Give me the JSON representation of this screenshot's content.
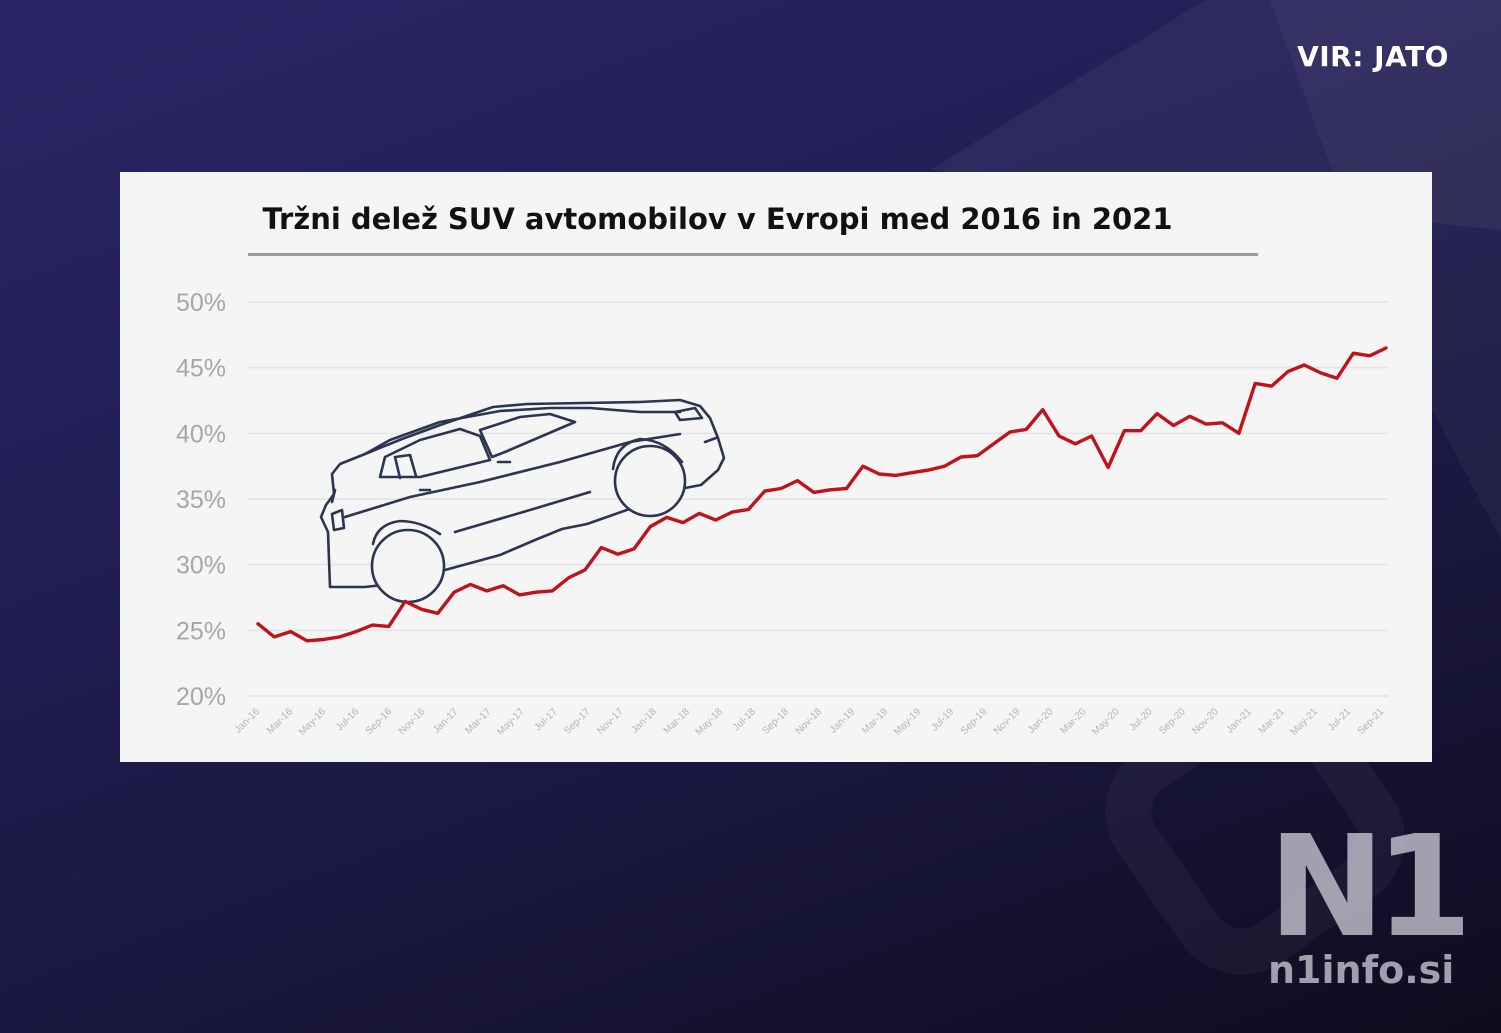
{
  "source": "VIR: JATO",
  "logo": {
    "mark": "N1",
    "url": "n1info.si"
  },
  "chart_data": {
    "type": "line",
    "title": "Tržni delež SUV avtomobilov v Evropi med 2016 in 2021",
    "xlabel": "",
    "ylabel": "",
    "ylim": [
      20,
      50
    ],
    "yticks": [
      20,
      25,
      30,
      35,
      40,
      45,
      50
    ],
    "ytick_labels": [
      "20%",
      "25%",
      "30%",
      "35%",
      "40%",
      "45%",
      "50%"
    ],
    "grid": true,
    "line_color": "#c0121a",
    "x_tick_labels": [
      "Jan-16",
      "Mar-16",
      "May-16",
      "Jul-16",
      "Sep-16",
      "Nov-16",
      "Jan-17",
      "Mar-17",
      "May-17",
      "Jul-17",
      "Sep-17",
      "Nov-17",
      "Jan-18",
      "Mar-18",
      "May-18",
      "Jul-18",
      "Sep-18",
      "Nov-18",
      "Jan-19",
      "Mar-19",
      "May-19",
      "Jul-19",
      "Sep-19",
      "Nov-19",
      "Jan-20",
      "Mar-20",
      "May-20",
      "Jul-20",
      "Sep-20",
      "Nov-20",
      "Jan-21",
      "Mar-21",
      "May-21",
      "Jul-21",
      "Sep-21"
    ],
    "series": [
      {
        "values": [
          25.5,
          24.5,
          24.9,
          24.2,
          24.3,
          24.5,
          24.9,
          25.4,
          25.3,
          27.2,
          26.6,
          26.3,
          27.9,
          28.5,
          28.0,
          28.4,
          27.7,
          27.9,
          28.0,
          29.0,
          29.6,
          31.3,
          30.8,
          31.2,
          32.9,
          33.6,
          33.2,
          33.9,
          33.4,
          34.0,
          34.2,
          35.6,
          35.8,
          36.4,
          35.5,
          35.7,
          35.8,
          37.5,
          36.9,
          36.8,
          37.0,
          37.2,
          37.5,
          38.2,
          38.3,
          39.2,
          40.1,
          40.3,
          41.8,
          39.8,
          39.2,
          39.8,
          37.4,
          40.2,
          40.2,
          41.5,
          40.6,
          41.3,
          40.7,
          40.8,
          40.0,
          43.8,
          43.6,
          44.7,
          45.2,
          44.6,
          44.2,
          46.1,
          45.9,
          46.5
        ]
      }
    ],
    "illustration": "suv-car-outline"
  }
}
